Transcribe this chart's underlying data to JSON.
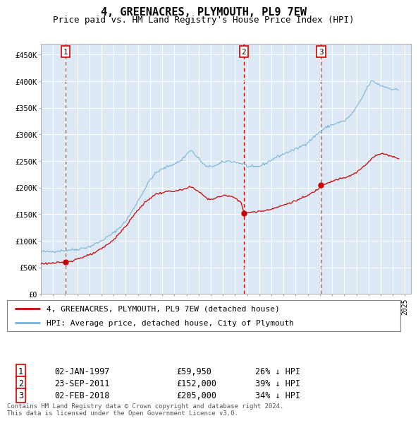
{
  "title": "4, GREENACRES, PLYMOUTH, PL9 7EW",
  "subtitle": "Price paid vs. HM Land Registry's House Price Index (HPI)",
  "ylabel_ticks": [
    "£0",
    "£50K",
    "£100K",
    "£150K",
    "£200K",
    "£250K",
    "£300K",
    "£350K",
    "£400K",
    "£450K"
  ],
  "ytick_values": [
    0,
    50000,
    100000,
    150000,
    200000,
    250000,
    300000,
    350000,
    400000,
    450000
  ],
  "ylim": [
    0,
    470000
  ],
  "xlim_start": 1995.0,
  "xlim_end": 2025.5,
  "background_color": "#dce9f5",
  "plot_bg_color": "#dce9f5",
  "grid_color": "#ffffff",
  "hpi_color": "#7ab4d8",
  "price_color": "#cc0000",
  "vline_color": "#cc0000",
  "transaction_dates": [
    1997.04,
    2011.73,
    2018.09
  ],
  "transaction_prices": [
    59950,
    152000,
    205000
  ],
  "transaction_labels": [
    "1",
    "2",
    "3"
  ],
  "legend_label_price": "4, GREENACRES, PLYMOUTH, PL9 7EW (detached house)",
  "legend_label_hpi": "HPI: Average price, detached house, City of Plymouth",
  "table_rows": [
    [
      "1",
      "02-JAN-1997",
      "£59,950",
      "26% ↓ HPI"
    ],
    [
      "2",
      "23-SEP-2011",
      "£152,000",
      "39% ↓ HPI"
    ],
    [
      "3",
      "02-FEB-2018",
      "£205,000",
      "34% ↓ HPI"
    ]
  ],
  "footnote": "Contains HM Land Registry data © Crown copyright and database right 2024.\nThis data is licensed under the Open Government Licence v3.0."
}
